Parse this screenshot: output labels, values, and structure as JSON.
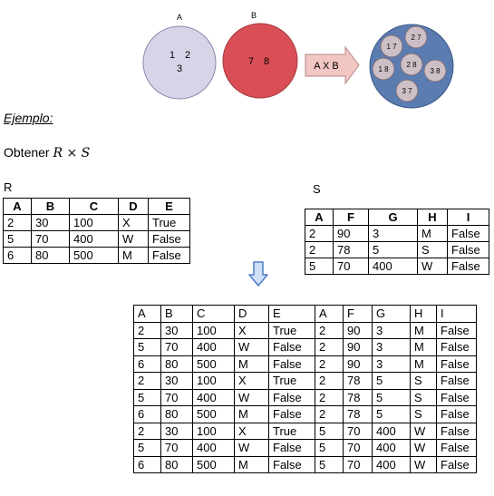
{
  "diagram": {
    "set_a": {
      "label": "A",
      "elements": [
        "1",
        "2",
        "3"
      ],
      "color": "#d9d3e8"
    },
    "set_b": {
      "label": "B",
      "elements": [
        "7",
        "8"
      ],
      "color": "#d94f55"
    },
    "operation_label": "A X B",
    "product_pairs": [
      "1 7",
      "2 7",
      "1 8",
      "2 8",
      "3 8",
      "3 7"
    ],
    "product_color": "#5b7cb1",
    "pair_color": "#cdbfc6",
    "arrow_color": "#f2c6c2"
  },
  "section_title": "Ejemplo:",
  "task": {
    "prefix": "Obtener ",
    "left": "R",
    "op": " × ",
    "right": "S"
  },
  "table_r": {
    "name": "R",
    "headers": [
      "A",
      "B",
      "C",
      "D",
      "E"
    ],
    "rows": [
      [
        "2",
        "30",
        "100",
        "X",
        "True"
      ],
      [
        "5",
        "70",
        "400",
        "W",
        "False"
      ],
      [
        "6",
        "80",
        "500",
        "M",
        "False"
      ]
    ]
  },
  "table_s": {
    "name": "S",
    "headers": [
      "A",
      "F",
      "G",
      "H",
      "I"
    ],
    "rows": [
      [
        "2",
        "90",
        "3",
        "M",
        "False"
      ],
      [
        "2",
        "78",
        "5",
        "S",
        "False"
      ],
      [
        "5",
        "70",
        "400",
        "W",
        "False"
      ]
    ]
  },
  "down_arrow_icon": "down-arrow",
  "result": {
    "headers": [
      "A",
      "B",
      "C",
      "D",
      "E",
      "A",
      "F",
      "G",
      "H",
      "I"
    ],
    "rows": [
      [
        "2",
        "30",
        "100",
        "X",
        "True",
        "2",
        "90",
        "3",
        "M",
        "False"
      ],
      [
        "5",
        "70",
        "400",
        "W",
        "False",
        "2",
        "90",
        "3",
        "M",
        "False"
      ],
      [
        "6",
        "80",
        "500",
        "M",
        "False",
        "2",
        "90",
        "3",
        "M",
        "False"
      ],
      [
        "2",
        "30",
        "100",
        "X",
        "True",
        "2",
        "78",
        "5",
        "S",
        "False"
      ],
      [
        "5",
        "70",
        "400",
        "W",
        "False",
        "2",
        "78",
        "5",
        "S",
        "False"
      ],
      [
        "6",
        "80",
        "500",
        "M",
        "False",
        "2",
        "78",
        "5",
        "S",
        "False"
      ],
      [
        "2",
        "30",
        "100",
        "X",
        "True",
        "5",
        "70",
        "400",
        "W",
        "False"
      ],
      [
        "5",
        "70",
        "400",
        "W",
        "False",
        "5",
        "70",
        "400",
        "W",
        "False"
      ],
      [
        "6",
        "80",
        "500",
        "M",
        "False",
        "5",
        "70",
        "400",
        "W",
        "False"
      ]
    ]
  }
}
